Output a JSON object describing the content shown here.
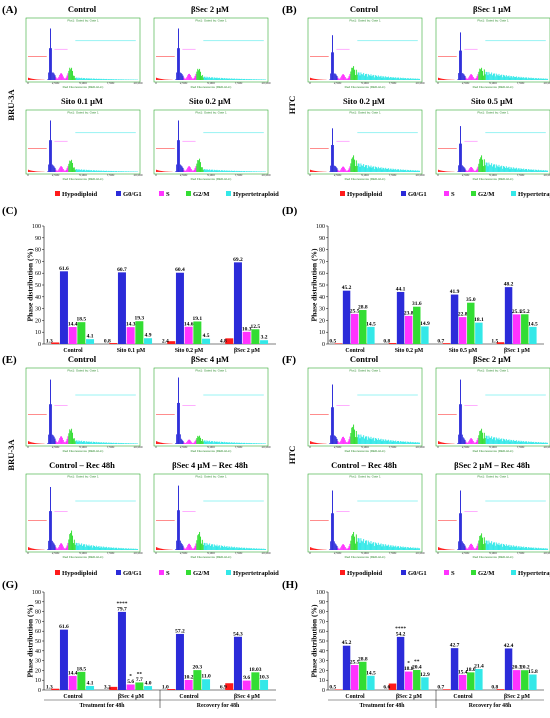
{
  "colors": {
    "hypodiploid": "#ff1a1a",
    "g0g1": "#2b2bd9",
    "s": "#ff33ff",
    "g2m": "#33dd33",
    "hypertetraploid": "#33e8e8",
    "flow_border": "#33aa33"
  },
  "side_labels": {
    "bru3a_top": "BRU-3A",
    "htc_top": "HTC",
    "bru3a_bottom": "BRU-3A",
    "htc_bottom": "HTC"
  },
  "flow_panels": [
    {
      "label": "(A)",
      "titles": [
        "Control",
        "βSec 2 μM",
        "Sito 0.1 μM",
        "Sito 0.2 μM"
      ]
    },
    {
      "label": "(B)",
      "titles": [
        "Control",
        "βSec 1 μM",
        "Sito 0.2 μM",
        "Sito 0.5 μM"
      ]
    },
    {
      "label": "(E)",
      "titles": [
        "Control",
        "βSec 4 μM",
        "Control – Rec 48h",
        "βSec 4 μM – Rec 48h"
      ]
    },
    {
      "label": "(F)",
      "titles": [
        "Control",
        "βSec 2 μM",
        "Control – Rec 48h",
        "βSec 2 μM – Rec 48h"
      ]
    }
  ],
  "flow_axis": {
    "x_title": "Red Fluorescence (RED-HLin)",
    "header": "Plot1: Gated by: Gate 1",
    "x_ticks": [
      "0",
      "2,500",
      "5,000",
      "7,500",
      "10,000"
    ]
  },
  "legend": [
    "Hypodiploid",
    "G0/G1",
    "S",
    "G2/M",
    "Hypertetraploid"
  ],
  "chart_data": [
    {
      "label": "(C)",
      "type": "bar",
      "ylabel": "Phase distribution (%)",
      "ylim": [
        0,
        100
      ],
      "yticks": [
        "0",
        "10",
        "20",
        "30",
        "40",
        "50",
        "60",
        "70",
        "80",
        "90",
        "100"
      ],
      "categories": [
        "Control",
        "Sito 0.1 μM",
        "Sito 0.2 μM",
        "βSec 2 μM"
      ],
      "series": [
        {
          "name": "Hypodiploid",
          "values": [
            1.3,
            0.8,
            2.4,
            4.8
          ]
        },
        {
          "name": "G0/G1",
          "values": [
            61.6,
            60.7,
            60.4,
            69.2
          ]
        },
        {
          "name": "S",
          "values": [
            14.4,
            14.3,
            14.6,
            10.3
          ]
        },
        {
          "name": "G2/M",
          "values": [
            18.5,
            19.3,
            19.1,
            12.5
          ]
        },
        {
          "name": "Hypertetraploid",
          "values": [
            4.1,
            4.9,
            4.5,
            3.2
          ]
        }
      ],
      "value_labels": [
        [
          "1.3",
          "61.6",
          "14.4",
          "18.5",
          "4.1"
        ],
        [
          "0.8",
          "60.7",
          "14.3",
          "19.3",
          "4.9"
        ],
        [
          "2.4",
          "60.4",
          "14.6",
          "19.1",
          "4.5"
        ],
        [
          "4.8",
          "69.2",
          "10.3",
          "12.5",
          "3.2"
        ]
      ]
    },
    {
      "label": "(D)",
      "type": "bar",
      "ylabel": "Phase distribution (%)",
      "ylim": [
        0,
        100
      ],
      "yticks": [
        "0",
        "10",
        "20",
        "30",
        "40",
        "50",
        "60",
        "70",
        "80",
        "90",
        "100"
      ],
      "categories": [
        "Control",
        "Sito 0.2 μM",
        "Sito 0.5 μM",
        "βSec 1 μM"
      ],
      "series": [
        {
          "name": "Hypodiploid",
          "values": [
            0.5,
            0.8,
            0.7,
            1.5
          ]
        },
        {
          "name": "G0/G1",
          "values": [
            45.2,
            44.1,
            41.9,
            48.2
          ]
        },
        {
          "name": "S",
          "values": [
            25.5,
            23.8,
            22.8,
            25.1
          ]
        },
        {
          "name": "G2/M",
          "values": [
            28.8,
            31.6,
            35.0,
            25.2
          ]
        },
        {
          "name": "Hypertetraploid",
          "values": [
            14.5,
            14.9,
            18.1,
            14.5
          ]
        }
      ],
      "value_labels": [
        [
          "0.5",
          "45.2",
          "25.5",
          "28.8",
          "14.5"
        ],
        [
          "0.8",
          "44.1",
          "23.8",
          "31.6",
          "14.9"
        ],
        [
          "0.7",
          "41.9",
          "22.8",
          "35.0",
          "18.1"
        ],
        [
          "1.5",
          "48.2",
          "25.1",
          "25.2",
          "14.5"
        ]
      ]
    },
    {
      "label": "(G)",
      "type": "bar",
      "ylabel": "Phase distribution (%)",
      "ylim": [
        0,
        100
      ],
      "yticks": [
        "0",
        "10",
        "20",
        "30",
        "40",
        "50",
        "60",
        "70",
        "80",
        "90",
        "100"
      ],
      "categories": [
        "Control",
        "βSec 4 μM",
        "Control",
        "βSec 4 μM"
      ],
      "groups": [
        "Treatment for 48h",
        "Recovery for 48h"
      ],
      "series": [
        {
          "name": "Hypodiploid",
          "values": [
            1.3,
            3.2,
            1.0,
            6.9
          ]
        },
        {
          "name": "G0/G1",
          "values": [
            61.6,
            79.7,
            57.2,
            54.3
          ]
        },
        {
          "name": "S",
          "values": [
            14.4,
            5.6,
            10.2,
            9.6
          ]
        },
        {
          "name": "G2/M",
          "values": [
            18.5,
            7.7,
            20.3,
            18.03
          ]
        },
        {
          "name": "Hypertetraploid",
          "values": [
            4.1,
            4.0,
            11.0,
            10.3
          ]
        }
      ],
      "value_labels": [
        [
          "1.3",
          "61.6",
          "14.4",
          "18.5",
          "4.1"
        ],
        [
          "3.2",
          "79.7",
          "5.6",
          "7.7",
          "4.0"
        ],
        [
          "1.0",
          "57.2",
          "10.2",
          "20.3",
          "11.0"
        ],
        [
          "6.9",
          "54.3",
          "9.6",
          "18.03",
          "10.3"
        ]
      ],
      "significance": [
        {
          "category": 1,
          "series": 1,
          "text": "****"
        },
        {
          "category": 1,
          "series": 2,
          "text": "*"
        },
        {
          "category": 1,
          "series": 3,
          "text": "**"
        }
      ]
    },
    {
      "label": "(H)",
      "type": "bar",
      "ylabel": "Phase distribution (%)",
      "ylim": [
        0,
        100
      ],
      "yticks": [
        "0",
        "10",
        "20",
        "30",
        "40",
        "50",
        "60",
        "70",
        "80",
        "90",
        "100"
      ],
      "categories": [
        "Control",
        "βSec 2 μM",
        "Control",
        "βSec 2 μM"
      ],
      "groups": [
        "Treatment for 48h",
        "Recovery for 48h"
      ],
      "series": [
        {
          "name": "Hypodiploid",
          "values": [
            0.5,
            6.6,
            0.7,
            0.8
          ]
        },
        {
          "name": "G0/G1",
          "values": [
            45.2,
            54.2,
            42.7,
            42.4
          ]
        },
        {
          "name": "S",
          "values": [
            25.5,
            18.8,
            15.4,
            20.3
          ]
        },
        {
          "name": "G2/M",
          "values": [
            28.8,
            20.4,
            18.0,
            20.2
          ]
        },
        {
          "name": "Hypertetraploid",
          "values": [
            14.5,
            12.9,
            21.4,
            15.8
          ]
        }
      ],
      "value_labels": [
        [
          "0.5",
          "45.2",
          "25.5",
          "28.8",
          "14.5"
        ],
        [
          "6.6",
          "54.2",
          "18.8",
          "20.4",
          "12.9"
        ],
        [
          "0.7",
          "42.7",
          "15.4",
          "18.0",
          "21.4"
        ],
        [
          "0.8",
          "42.4",
          "20.3",
          "20.2",
          "15.8"
        ]
      ],
      "significance": [
        {
          "category": 1,
          "series": 1,
          "text": "****"
        },
        {
          "category": 1,
          "series": 2,
          "text": "*"
        },
        {
          "category": 1,
          "series": 3,
          "text": "**"
        }
      ]
    }
  ]
}
